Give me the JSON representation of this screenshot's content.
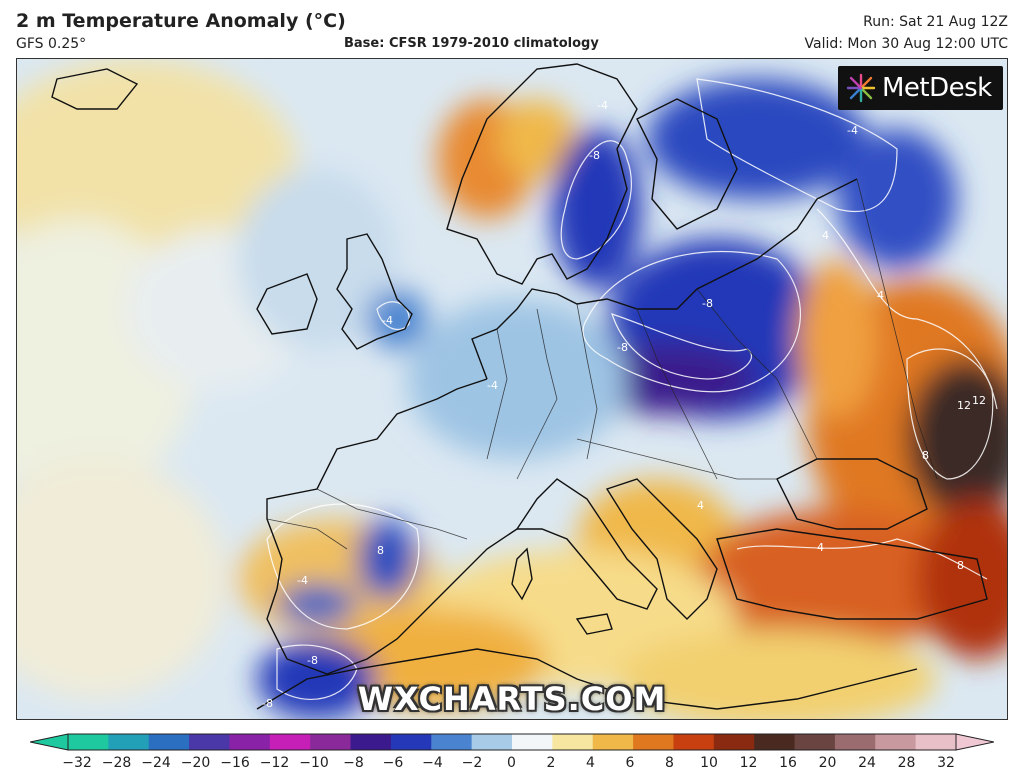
{
  "header": {
    "title": "2 m Temperature Anomaly (°C)",
    "model": "GFS 0.25°",
    "base": "Base: CFSR 1979-2010 climatology",
    "run": "Run: Sat 21 Aug 12Z",
    "valid": "Valid: Mon 30 Aug 12:00 UTC"
  },
  "logo": {
    "text": "MetDesk",
    "icon": "metdesk-starburst-icon"
  },
  "watermark": "WXCHARTS.COM",
  "legend": {
    "ticks": [
      "−32",
      "−28",
      "−24",
      "−20",
      "−16",
      "−12",
      "−10",
      "−8",
      "−6",
      "−4",
      "−2",
      "0",
      "2",
      "4",
      "6",
      "8",
      "10",
      "12",
      "16",
      "20",
      "24",
      "28",
      "32"
    ],
    "colors": [
      "#1fc9a0",
      "#22a0b8",
      "#2a6fc0",
      "#4b38a8",
      "#8a22a8",
      "#c61fb8",
      "#8a2a9a",
      "#3a1a8c",
      "#2438b8",
      "#4a84d0",
      "#a8cce8",
      "#f2f6f8",
      "#f6e6a0",
      "#f0b848",
      "#e07820",
      "#c84010",
      "#8a2a10",
      "#4a2a20",
      "#6a4440",
      "#9a6c70",
      "#c89aa0",
      "#e8c0c8"
    ]
  },
  "map_labels": [
    {
      "text": "-4"
    },
    {
      "text": "-8"
    },
    {
      "text": "-4"
    },
    {
      "text": "-4"
    },
    {
      "text": "-8"
    },
    {
      "text": "-8"
    },
    {
      "text": "-4"
    },
    {
      "text": "4"
    },
    {
      "text": "4"
    },
    {
      "text": "8"
    },
    {
      "text": "12"
    },
    {
      "text": "12"
    },
    {
      "text": "8"
    },
    {
      "text": "4"
    },
    {
      "text": "8"
    },
    {
      "text": "-8"
    },
    {
      "text": "-4"
    },
    {
      "text": "-8"
    },
    {
      "text": "4"
    }
  ]
}
